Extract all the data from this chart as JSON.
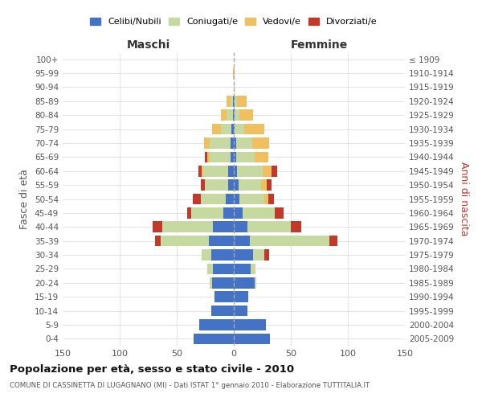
{
  "age_groups": [
    "0-4",
    "5-9",
    "10-14",
    "15-19",
    "20-24",
    "25-29",
    "30-34",
    "35-39",
    "40-44",
    "45-49",
    "50-54",
    "55-59",
    "60-64",
    "65-69",
    "70-74",
    "75-79",
    "80-84",
    "85-89",
    "90-94",
    "95-99",
    "100+"
  ],
  "birth_years": [
    "2005-2009",
    "2000-2004",
    "1995-1999",
    "1990-1994",
    "1985-1989",
    "1980-1984",
    "1975-1979",
    "1970-1974",
    "1965-1969",
    "1960-1964",
    "1955-1959",
    "1950-1954",
    "1945-1949",
    "1940-1944",
    "1935-1939",
    "1930-1934",
    "1925-1929",
    "1920-1924",
    "1915-1919",
    "1910-1914",
    "≤ 1909"
  ],
  "colors": {
    "celibi": "#4472c4",
    "coniugati": "#c5d9a0",
    "vedovi": "#f0c060",
    "divorziati": "#c0392b"
  },
  "maschi": {
    "celibi": [
      35,
      30,
      20,
      17,
      19,
      18,
      20,
      22,
      18,
      9,
      7,
      5,
      5,
      3,
      3,
      2,
      1,
      1,
      0,
      0,
      0
    ],
    "coniugati": [
      0,
      0,
      0,
      0,
      2,
      5,
      8,
      42,
      45,
      28,
      22,
      20,
      22,
      18,
      18,
      9,
      5,
      2,
      0,
      0,
      0
    ],
    "vedovi": [
      0,
      0,
      0,
      0,
      0,
      0,
      0,
      0,
      0,
      0,
      0,
      0,
      1,
      2,
      5,
      8,
      5,
      3,
      0,
      1,
      0
    ],
    "divorziati": [
      0,
      0,
      0,
      0,
      0,
      0,
      0,
      5,
      8,
      4,
      7,
      4,
      3,
      2,
      0,
      0,
      0,
      0,
      0,
      0,
      0
    ]
  },
  "femmine": {
    "celibi": [
      32,
      28,
      12,
      13,
      18,
      15,
      17,
      14,
      12,
      8,
      5,
      4,
      3,
      2,
      2,
      1,
      1,
      1,
      0,
      0,
      0
    ],
    "coniugati": [
      0,
      0,
      0,
      0,
      2,
      4,
      10,
      70,
      38,
      28,
      22,
      20,
      22,
      16,
      14,
      8,
      4,
      2,
      0,
      0,
      0
    ],
    "vedovi": [
      0,
      0,
      0,
      0,
      0,
      0,
      0,
      0,
      0,
      0,
      3,
      5,
      8,
      12,
      15,
      18,
      12,
      8,
      1,
      1,
      0
    ],
    "divorziati": [
      0,
      0,
      0,
      0,
      0,
      0,
      4,
      7,
      9,
      8,
      5,
      4,
      5,
      0,
      0,
      0,
      0,
      0,
      0,
      0,
      0
    ]
  },
  "xlim": 150,
  "title": "Popolazione per età, sesso e stato civile - 2010",
  "subtitle": "COMUNE DI CASSINETTA DI LUGAGNANO (MI) - Dati ISTAT 1° gennaio 2010 - Elaborazione TUTTITALIA.IT",
  "xlabel_left": "Maschi",
  "xlabel_right": "Femmine",
  "ylabel_left": "Fasce di età",
  "ylabel_right": "Anni di nascita",
  "legend_labels": [
    "Celibi/Nubili",
    "Coniugati/e",
    "Vedovi/e",
    "Divorziati/e"
  ],
  "bg_color": "#ffffff",
  "grid_color": "#cccccc"
}
